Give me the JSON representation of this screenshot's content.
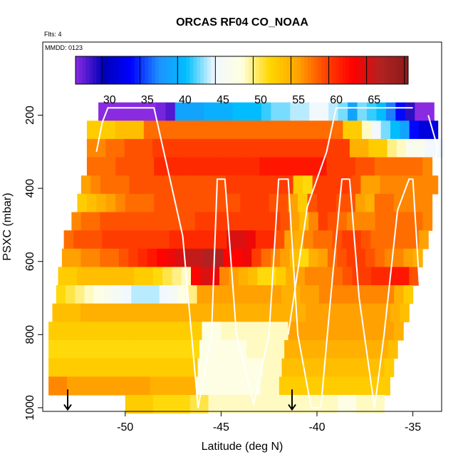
{
  "chart_data": {
    "type": "heatmap",
    "title": "ORCAS RF04 CO_NOAA",
    "annotations": {
      "flights": "Flts: 4",
      "date": "MMDD: 0123"
    },
    "xlabel": "Latitude (deg N)",
    "ylabel": "PSXC (mbar)",
    "xlim": [
      -54.3,
      -33.5
    ],
    "ylim": [
      1010,
      0
    ],
    "x_ticks": [
      -50,
      -45,
      -40,
      -35
    ],
    "x_tick_labels": [
      "-50",
      "-45",
      "-40",
      "-35"
    ],
    "y_ticks": [
      200,
      400,
      600,
      800,
      1000
    ],
    "y_tick_labels": [
      "200",
      "400",
      "600",
      "800",
      "1000"
    ],
    "colorbar": {
      "range": [
        25.5,
        69.5
      ],
      "ticks": [
        30,
        35,
        40,
        45,
        50,
        55,
        60,
        65
      ],
      "tick_labels": [
        "30",
        "35",
        "40",
        "45",
        "50",
        "55",
        "60",
        "65"
      ]
    },
    "colormap": [
      "#8a2be2",
      "#0000b8",
      "#0000ff",
      "#1e90ff",
      "#00bfff",
      "#f0f8ff",
      "#ffffe0",
      "#ffd700",
      "#ffa500",
      "#ff4500",
      "#ff0000",
      "#b22222",
      "#8b1a1a"
    ],
    "series": [
      {
        "p": 190,
        "x0": -51.4,
        "x1": -33.9,
        "values": [
          24,
          24,
          24,
          25,
          25,
          25,
          26,
          27,
          38,
          38,
          38,
          39,
          39,
          39,
          40,
          40,
          40,
          41,
          42,
          42,
          43,
          43,
          44,
          44,
          43,
          42,
          38,
          42,
          41,
          40,
          36,
          33,
          28,
          25,
          24
        ]
      },
      {
        "p": 240,
        "x0": -52.0,
        "x1": -33.7,
        "values": [
          52,
          52,
          52,
          53,
          53,
          53,
          57,
          57,
          57,
          57,
          57,
          57,
          57,
          57,
          57,
          57,
          57,
          57,
          57,
          57,
          57,
          57,
          57,
          57,
          57,
          57,
          57,
          52,
          52,
          48,
          44,
          42,
          40,
          38,
          33,
          31,
          31
        ]
      },
      {
        "p": 290,
        "x0": -52.0,
        "x1": -33.4,
        "values": [
          56,
          56,
          57,
          57,
          58,
          58,
          58,
          59,
          59,
          59,
          59,
          59,
          59,
          59,
          59,
          59,
          59,
          59,
          59,
          59,
          59,
          59,
          59,
          59,
          59,
          59,
          59,
          59,
          54,
          54,
          52,
          52,
          49,
          48,
          46,
          46,
          44,
          44
        ]
      },
      {
        "p": 340,
        "x0": -52.0,
        "x1": -34.0,
        "values": [
          57,
          57,
          57,
          58,
          58,
          58,
          58,
          60,
          60,
          60,
          60,
          60,
          60,
          60,
          60,
          60,
          60,
          60,
          61,
          61,
          61,
          61,
          61,
          61,
          61,
          59,
          59,
          59,
          58,
          58,
          57,
          57,
          57,
          57,
          57,
          56
        ]
      },
      {
        "p": 390,
        "x0": -52.3,
        "x1": -33.7,
        "values": [
          55,
          56,
          57,
          57,
          57,
          58,
          58,
          58,
          58,
          58,
          58,
          58,
          58,
          58,
          58,
          59,
          59,
          59,
          59,
          59,
          59,
          59,
          52,
          51,
          59,
          59,
          59,
          59,
          58,
          55,
          55,
          56,
          56,
          56,
          56,
          56,
          56
        ]
      },
      {
        "p": 440,
        "x0": -52.5,
        "x1": -34.0,
        "values": [
          52,
          53,
          54,
          55,
          56,
          57,
          57,
          57,
          58,
          58,
          58,
          58,
          58,
          58,
          58,
          58,
          58,
          59,
          59,
          59,
          58,
          58,
          55,
          52,
          58,
          59,
          59,
          58,
          58,
          55,
          54,
          57,
          57,
          56,
          56,
          56,
          56
        ]
      },
      {
        "p": 490,
        "x0": -52.8,
        "x1": -34.0,
        "values": [
          56,
          57,
          57,
          58,
          58,
          58,
          58,
          58,
          58,
          58,
          58,
          58,
          58,
          59,
          59,
          59,
          59,
          59,
          59,
          59,
          59,
          59,
          58,
          55,
          53,
          56,
          59,
          58,
          57,
          56,
          56,
          56,
          57,
          57,
          57,
          57,
          57,
          56
        ]
      },
      {
        "p": 540,
        "x0": -53.2,
        "x1": -34.2,
        "values": [
          57,
          58,
          58,
          58,
          59,
          59,
          59,
          59,
          59,
          59,
          59,
          60,
          60,
          60,
          60,
          60,
          60,
          64,
          64,
          63,
          60,
          60,
          58,
          55,
          54,
          56,
          57,
          57,
          58,
          59,
          59,
          58,
          57,
          57,
          57,
          57,
          57,
          55
        ]
      },
      {
        "p": 590,
        "x0": -53.3,
        "x1": -34.5,
        "values": [
          55,
          55,
          56,
          56,
          57,
          57,
          58,
          59,
          60,
          61,
          62,
          63,
          64,
          65,
          65,
          66,
          66,
          62,
          62,
          63,
          59,
          57,
          56,
          55,
          53,
          51,
          54,
          55,
          57,
          58,
          59,
          59,
          58,
          57,
          56,
          56,
          55,
          54
        ]
      },
      {
        "p": 640,
        "x0": -53.5,
        "x1": -34.7,
        "values": [
          52,
          52,
          53,
          53,
          53,
          53,
          53,
          53,
          52,
          52,
          51,
          50,
          49,
          48,
          62,
          64,
          63,
          56,
          55,
          54,
          53,
          51,
          51,
          52,
          54,
          55,
          56,
          56,
          56,
          57,
          58,
          59,
          59,
          60,
          60,
          61,
          61,
          58
        ]
      },
      {
        "p": 690,
        "x0": -53.6,
        "x1": -35.0,
        "values": [
          51,
          50,
          49,
          48,
          47,
          46,
          45,
          44,
          43,
          43,
          43,
          44,
          45,
          47,
          49,
          55,
          55,
          55,
          55,
          55,
          55,
          55,
          55,
          55,
          54,
          54,
          55,
          55,
          56,
          56,
          56,
          56,
          56,
          56,
          56,
          56,
          54,
          52
        ]
      },
      {
        "p": 740,
        "x0": -53.8,
        "x1": -35.2,
        "values": [
          53,
          53,
          53,
          54,
          54,
          54,
          54,
          54,
          54,
          54,
          54,
          54,
          54,
          54,
          54,
          54,
          54,
          54,
          54,
          54,
          54,
          54,
          54,
          54,
          54,
          54,
          54,
          55,
          55,
          55,
          55,
          55,
          55,
          55,
          55,
          55,
          54,
          53
        ]
      },
      {
        "p": 790,
        "x0": -54.0,
        "x1": -35.5,
        "values": [
          52,
          52,
          52,
          52,
          52,
          52,
          52,
          52,
          52,
          52,
          52,
          52,
          52,
          52,
          52,
          52,
          47,
          47,
          48,
          48,
          48,
          48,
          48,
          48,
          48,
          55,
          55,
          55,
          55,
          55,
          55,
          55,
          55,
          55,
          55,
          55,
          54
        ]
      },
      {
        "p": 840,
        "x0": -54.0,
        "x1": -35.8,
        "values": [
          51,
          51,
          51,
          51,
          51,
          51,
          51,
          51,
          51,
          51,
          51,
          51,
          51,
          51,
          51,
          51,
          47,
          47,
          47,
          47,
          47,
          48,
          48,
          48,
          48,
          54,
          54,
          54,
          54,
          54,
          54,
          54,
          54,
          54,
          54,
          54,
          53
        ]
      },
      {
        "p": 890,
        "x0": -54.0,
        "x1": -36.0,
        "values": [
          52,
          52,
          52,
          52,
          52,
          52,
          52,
          52,
          52,
          52,
          52,
          52,
          52,
          52,
          52,
          52,
          47,
          47,
          47,
          47,
          47,
          47,
          47,
          48,
          48,
          53,
          53,
          53,
          53,
          53,
          53,
          53,
          53,
          53,
          53,
          53,
          52
        ]
      },
      {
        "p": 940,
        "x0": -54.0,
        "x1": -36.2,
        "values": [
          56,
          56,
          55,
          55,
          55,
          55,
          55,
          55,
          55,
          55,
          55,
          54,
          54,
          54,
          54,
          54,
          47,
          47,
          47,
          47,
          47,
          47,
          47,
          48,
          48,
          52,
          52,
          52,
          52,
          52,
          52,
          52,
          52,
          52,
          52,
          52,
          52
        ]
      },
      {
        "p": 990,
        "x0": -50.0,
        "x1": -36.5,
        "values": [
          52,
          52,
          52,
          51,
          51,
          51,
          51,
          50,
          50,
          48,
          48,
          48,
          48,
          48,
          48,
          48,
          48,
          48,
          48,
          48,
          48,
          48,
          48,
          47,
          47,
          48,
          48,
          48
        ]
      }
    ],
    "flight_track": [
      [
        -51.5,
        300
      ],
      [
        -51.2,
        220
      ],
      [
        -50.9,
        180
      ],
      [
        -48.5,
        180
      ],
      [
        -47.0,
        530
      ],
      [
        -46.2,
        1000
      ],
      [
        -45.5,
        800
      ],
      [
        -45.2,
        375
      ],
      [
        -44.8,
        375
      ],
      [
        -44.2,
        800
      ],
      [
        -43.3,
        990
      ],
      [
        -42.5,
        800
      ],
      [
        -42.0,
        375
      ],
      [
        -41.5,
        375
      ],
      [
        -41.0,
        800
      ],
      [
        -40.3,
        1000
      ],
      [
        -39.8,
        1000
      ],
      [
        -39.2,
        650
      ],
      [
        -38.7,
        375
      ],
      [
        -38.3,
        375
      ],
      [
        -37.8,
        700
      ],
      [
        -37.0,
        1000
      ],
      [
        -36.5,
        800
      ],
      [
        -35.8,
        460
      ],
      [
        -35.2,
        375
      ],
      [
        -35.0,
        375
      ],
      [
        -34.5,
        800
      ],
      [
        -34.2,
        950
      ]
    ],
    "flight_track_top": [
      [
        -41.5,
        800
      ],
      [
        -40.5,
        450
      ],
      [
        -39.5,
        300
      ],
      [
        -39.0,
        180
      ],
      [
        -35.0,
        180
      ]
    ],
    "flight_track_right": [
      [
        -34.2,
        200
      ],
      [
        -33.7,
        290
      ],
      [
        -33.9,
        340
      ]
    ],
    "arrows": [
      {
        "lat": -53.0,
        "p_from": 950,
        "p_to": 1005
      },
      {
        "lat": -41.3,
        "p_from": 950,
        "p_to": 1005
      }
    ]
  }
}
